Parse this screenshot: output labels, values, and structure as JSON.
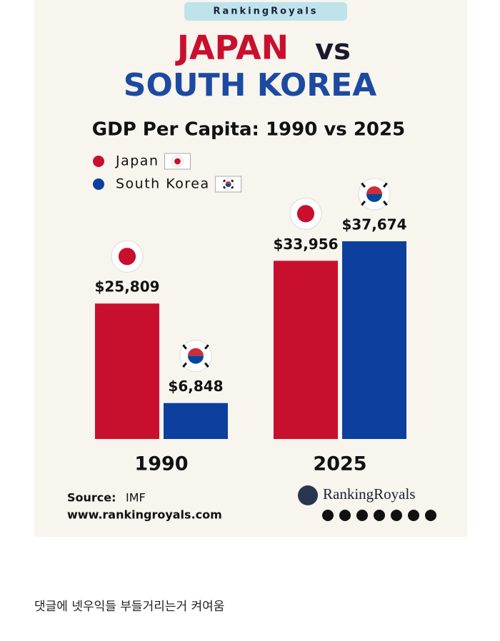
{
  "brand": "RankingRoyals",
  "chart_data": {
    "type": "bar",
    "title": [
      "JAPAN",
      "vs",
      "SOUTH KOREA"
    ],
    "subtitle": "GDP Per Capita: 1990 vs 2025",
    "categories": [
      "1990",
      "2025"
    ],
    "series": [
      {
        "name": "Japan",
        "color": "#c8102e",
        "values": [
          25809,
          33956
        ],
        "value_labels": [
          "$25,809",
          "$33,956"
        ]
      },
      {
        "name": "South Korea",
        "color": "#0d3f9e",
        "values": [
          6848,
          37674
        ],
        "value_labels": [
          "$6,848",
          "$37,674"
        ]
      }
    ]
  },
  "source_label": "Source:",
  "source": "IMF",
  "website": "www.rankingroyals.com",
  "logo_text": "RankingRoyals",
  "caption": "댓글에 넷우익들 부들거리는거 켜여움"
}
